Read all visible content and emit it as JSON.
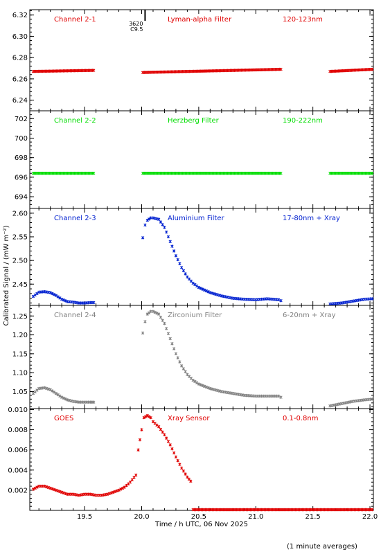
{
  "chart_data": [
    {
      "type": "scatter",
      "labels": [
        "Channel 2-1",
        "Lyman-alpha Filter",
        "120-123nm"
      ],
      "color": "#e00000",
      "ylim": [
        6.23,
        6.325
      ],
      "yticks": [
        "6.24",
        "6.26",
        "6.28",
        "6.30",
        "6.32"
      ],
      "segments": [
        {
          "x": [
            19.05,
            19.58
          ],
          "y": [
            6.267,
            6.268
          ],
          "bump": 0
        },
        {
          "x": [
            20.01,
            21.22
          ],
          "y": [
            6.266,
            6.269
          ],
          "bump": 0
        },
        {
          "x": [
            21.65,
            22.02
          ],
          "y": [
            6.267,
            6.269
          ],
          "bump": 0
        }
      ],
      "marker": {
        "x": 20.03,
        "top_label": "3620",
        "sub_label": "C9.5"
      }
    },
    {
      "type": "scatter",
      "labels": [
        "Channel 2-2",
        "Herzberg Filter",
        "190-222nm"
      ],
      "color": "#00dd00",
      "ylim": [
        692.8,
        702.8
      ],
      "yticks": [
        "694",
        "696",
        "698",
        "700",
        "702"
      ],
      "segments": [
        {
          "x": [
            19.05,
            19.58
          ],
          "y": [
            696.4,
            696.4
          ],
          "bump": 0
        },
        {
          "x": [
            20.01,
            21.22
          ],
          "y": [
            696.4,
            696.4
          ],
          "bump": 0
        },
        {
          "x": [
            21.65,
            22.02
          ],
          "y": [
            696.4,
            696.4
          ],
          "bump": 0
        }
      ]
    },
    {
      "type": "scatter",
      "labels": [
        "Channel 2-3",
        "Aluminium Filter",
        "17-80nm + Xray"
      ],
      "color": "#0020d0",
      "ylim": [
        2.405,
        2.61
      ],
      "yticks": [
        "2.45",
        "2.50",
        "2.55",
        "2.60"
      ],
      "series": {
        "x": [
          19.05,
          19.1,
          19.15,
          19.2,
          19.25,
          19.3,
          19.35,
          19.4,
          19.45,
          19.5,
          19.55,
          19.58,
          20.01,
          20.03,
          20.05,
          20.08,
          20.1,
          20.15,
          20.2,
          20.25,
          20.3,
          20.35,
          20.4,
          20.45,
          20.5,
          20.6,
          20.7,
          20.8,
          20.9,
          21.0,
          21.1,
          21.2,
          21.22,
          21.65,
          21.75,
          21.85,
          21.95,
          22.02
        ],
        "y": [
          2.424,
          2.433,
          2.434,
          2.432,
          2.426,
          2.418,
          2.413,
          2.412,
          2.41,
          2.41,
          2.411,
          2.411,
          2.548,
          2.575,
          2.585,
          2.59,
          2.59,
          2.587,
          2.57,
          2.54,
          2.51,
          2.485,
          2.465,
          2.452,
          2.443,
          2.432,
          2.425,
          2.42,
          2.418,
          2.417,
          2.419,
          2.417,
          2.415,
          2.408,
          2.41,
          2.414,
          2.418,
          2.419
        ]
      }
    },
    {
      "type": "scatter",
      "labels": [
        "Channel 2-4",
        "Zirconium Filter",
        "6-20nm + Xray"
      ],
      "color": "#808080",
      "ylim": [
        1.005,
        1.278
      ],
      "yticks": [
        "1.05",
        "1.10",
        "1.15",
        "1.20",
        "1.25"
      ],
      "series": {
        "x": [
          19.05,
          19.1,
          19.15,
          19.2,
          19.25,
          19.3,
          19.35,
          19.4,
          19.45,
          19.5,
          19.55,
          19.58,
          20.01,
          20.03,
          20.05,
          20.08,
          20.1,
          20.15,
          20.2,
          20.25,
          20.3,
          20.35,
          20.4,
          20.45,
          20.5,
          20.6,
          20.7,
          20.8,
          20.9,
          21.0,
          21.1,
          21.2,
          21.22,
          21.65,
          21.75,
          21.85,
          21.95,
          22.02
        ],
        "y": [
          1.045,
          1.058,
          1.06,
          1.055,
          1.045,
          1.035,
          1.028,
          1.024,
          1.022,
          1.022,
          1.022,
          1.022,
          1.205,
          1.235,
          1.255,
          1.262,
          1.262,
          1.255,
          1.23,
          1.19,
          1.15,
          1.118,
          1.095,
          1.08,
          1.07,
          1.058,
          1.05,
          1.045,
          1.04,
          1.038,
          1.038,
          1.038,
          1.035,
          1.012,
          1.018,
          1.024,
          1.028,
          1.03
        ]
      }
    },
    {
      "type": "scatter",
      "labels": [
        "GOES",
        "Xray Sensor",
        "0.1-0.8nm"
      ],
      "color": "#e00000",
      "ylim": [
        0.0,
        0.0101
      ],
      "yticks": [
        "0.002",
        "0.004",
        "0.006",
        "0.008",
        "0.010"
      ],
      "series": {
        "x": [
          19.05,
          19.1,
          19.15,
          19.2,
          19.25,
          19.3,
          19.35,
          19.4,
          19.45,
          19.5,
          19.55,
          19.6,
          19.65,
          19.7,
          19.75,
          19.8,
          19.85,
          19.9,
          19.95,
          19.97,
          20.0,
          20.02,
          20.05,
          20.08,
          20.1,
          20.15,
          20.2,
          20.25,
          20.3,
          20.35,
          20.4,
          20.43
        ],
        "y": [
          0.0021,
          0.0024,
          0.0024,
          0.0022,
          0.002,
          0.0018,
          0.0016,
          0.0016,
          0.0015,
          0.0016,
          0.0016,
          0.0015,
          0.0015,
          0.0016,
          0.0018,
          0.002,
          0.0023,
          0.0028,
          0.0035,
          0.006,
          0.008,
          0.0092,
          0.0094,
          0.0092,
          0.0088,
          0.0083,
          0.0075,
          0.0065,
          0.0053,
          0.0042,
          0.0033,
          0.0029
        ],
        "flat": {
          "x": [
            20.45,
            22.02
          ],
          "y": 0.0
        }
      }
    }
  ],
  "xaxis": {
    "label": "Time / h UTC, 06 Nov 2025",
    "range": [
      19.02,
      22.03
    ],
    "ticks": [
      "19.5",
      "20.0",
      "20.5",
      "21.0",
      "21.5",
      "22.0"
    ]
  },
  "ylabel": "Calibrated Signal / (mW m⁻²)",
  "note": "(1 minute averages)"
}
